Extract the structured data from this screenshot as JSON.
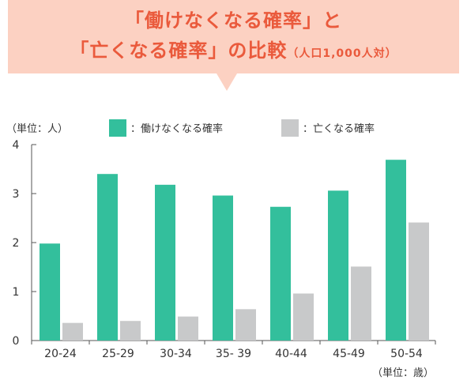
{
  "title": {
    "line1": "「働けなくなる確率」と",
    "line2": "「亡くなる確率」の比較",
    "line2_suffix": "（人口1,000人対）"
  },
  "colors": {
    "banner_bg": "#fcd1c2",
    "title_text": "#ea5a3c",
    "series_work": "#33bf9c",
    "series_death": "#c8c9ca",
    "axis": "#555555"
  },
  "chart_data": {
    "type": "bar",
    "ylabel": "（単位：人）",
    "xlabel": "（単位：歳）",
    "ylim": [
      0,
      4
    ],
    "yticks": [
      "0",
      "1",
      "2",
      "3",
      "4"
    ],
    "legend_position": "top",
    "categories": [
      "20-24",
      "25-29",
      "30-34",
      "35- 39",
      "40-44",
      "45-49",
      "50-54"
    ],
    "series": [
      {
        "name": "：働けなくなる確率",
        "color": "#33bf9c",
        "values": [
          1.98,
          3.4,
          3.18,
          2.96,
          2.73,
          3.06,
          3.69
        ]
      },
      {
        "name": "：亡くなる確率",
        "color": "#c8c9ca",
        "values": [
          0.36,
          0.4,
          0.49,
          0.64,
          0.96,
          1.51,
          2.41
        ]
      }
    ]
  }
}
